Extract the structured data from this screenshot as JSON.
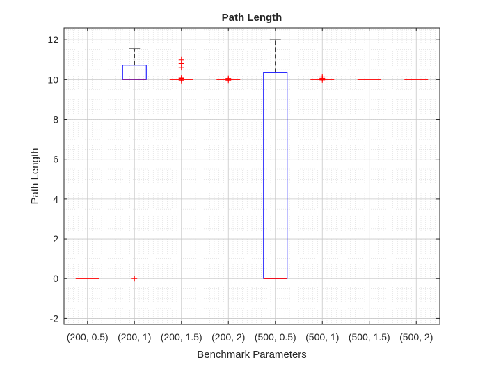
{
  "chart_data": {
    "type": "box",
    "title": "Path Length",
    "xlabel": "Benchmark Parameters",
    "ylabel": "Path Length",
    "ylim": [
      -2.3,
      12.6
    ],
    "yticks": [
      -2,
      0,
      2,
      4,
      6,
      8,
      10,
      12
    ],
    "grid": true,
    "minor_grid": true,
    "categories": [
      "(200, 0.5)",
      "(200, 1)",
      "(200, 1.5)",
      "(200, 2)",
      "(500, 0.5)",
      "(500, 1)",
      "(500, 1.5)",
      "(500, 2)"
    ],
    "boxes": [
      {
        "q1": 0,
        "median": 0,
        "q3": 0,
        "whisker_low": 0,
        "whisker_high": 0,
        "outliers": []
      },
      {
        "q1": 10.0,
        "median": 10.02,
        "q3": 10.72,
        "whisker_low": 10.0,
        "whisker_high": 11.55,
        "outliers": [
          0
        ]
      },
      {
        "q1": 10.0,
        "median": 10.0,
        "q3": 10.0,
        "whisker_low": 10.0,
        "whisker_high": 10.0,
        "outliers": [
          9.95,
          10.02,
          10.05,
          10.08,
          10.6,
          10.8,
          11.0
        ]
      },
      {
        "q1": 10.0,
        "median": 10.0,
        "q3": 10.0,
        "whisker_low": 10.0,
        "whisker_high": 10.0,
        "outliers": [
          9.97,
          10.03,
          10.06
        ]
      },
      {
        "q1": 0,
        "median": 0,
        "q3": 10.35,
        "whisker_low": 0,
        "whisker_high": 12.0,
        "outliers": []
      },
      {
        "q1": 10.0,
        "median": 10.0,
        "q3": 10.0,
        "whisker_low": 10.0,
        "whisker_high": 10.0,
        "outliers": [
          9.98,
          10.04,
          10.07,
          10.14
        ]
      },
      {
        "q1": 10.0,
        "median": 10.0,
        "q3": 10.0,
        "whisker_low": 10.0,
        "whisker_high": 10.0,
        "outliers": []
      },
      {
        "q1": 10.0,
        "median": 10.0,
        "q3": 10.0,
        "whisker_low": 10.0,
        "whisker_high": 10.0,
        "outliers": []
      }
    ],
    "colors": {
      "box": "#0000ff",
      "median": "#ff0000",
      "whisker": "#000000",
      "outlier": "#ff0000",
      "grid": "#d9d9d9",
      "axis": "#262626"
    }
  }
}
